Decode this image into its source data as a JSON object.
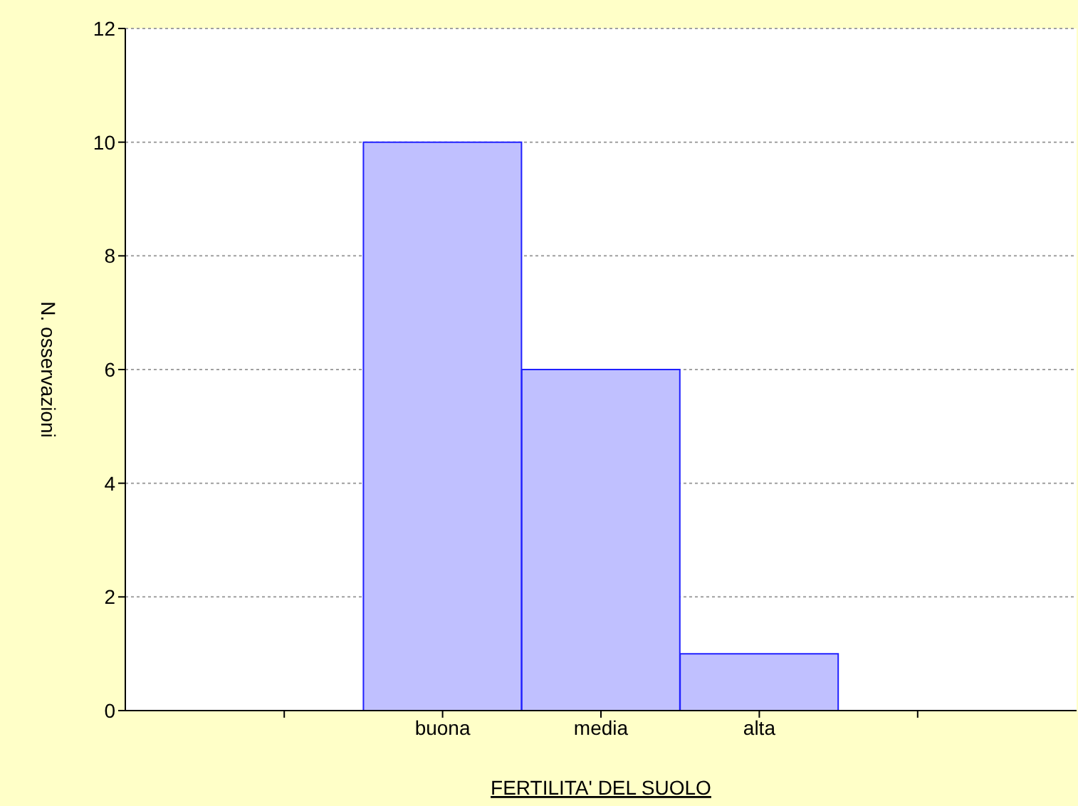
{
  "chart_data": {
    "type": "bar",
    "xlabel": "FERTILITA' DEL SUOLO",
    "ylabel": "N. osservazioni",
    "categories": [
      null,
      "buona",
      "media",
      "alta",
      null
    ],
    "values": [
      null,
      10,
      6,
      1,
      null
    ],
    "color": "#c0c0ff",
    "ylim": [
      0,
      12
    ],
    "yticks": [
      0,
      2,
      4,
      6,
      8,
      10,
      12
    ],
    "grid": "y"
  }
}
